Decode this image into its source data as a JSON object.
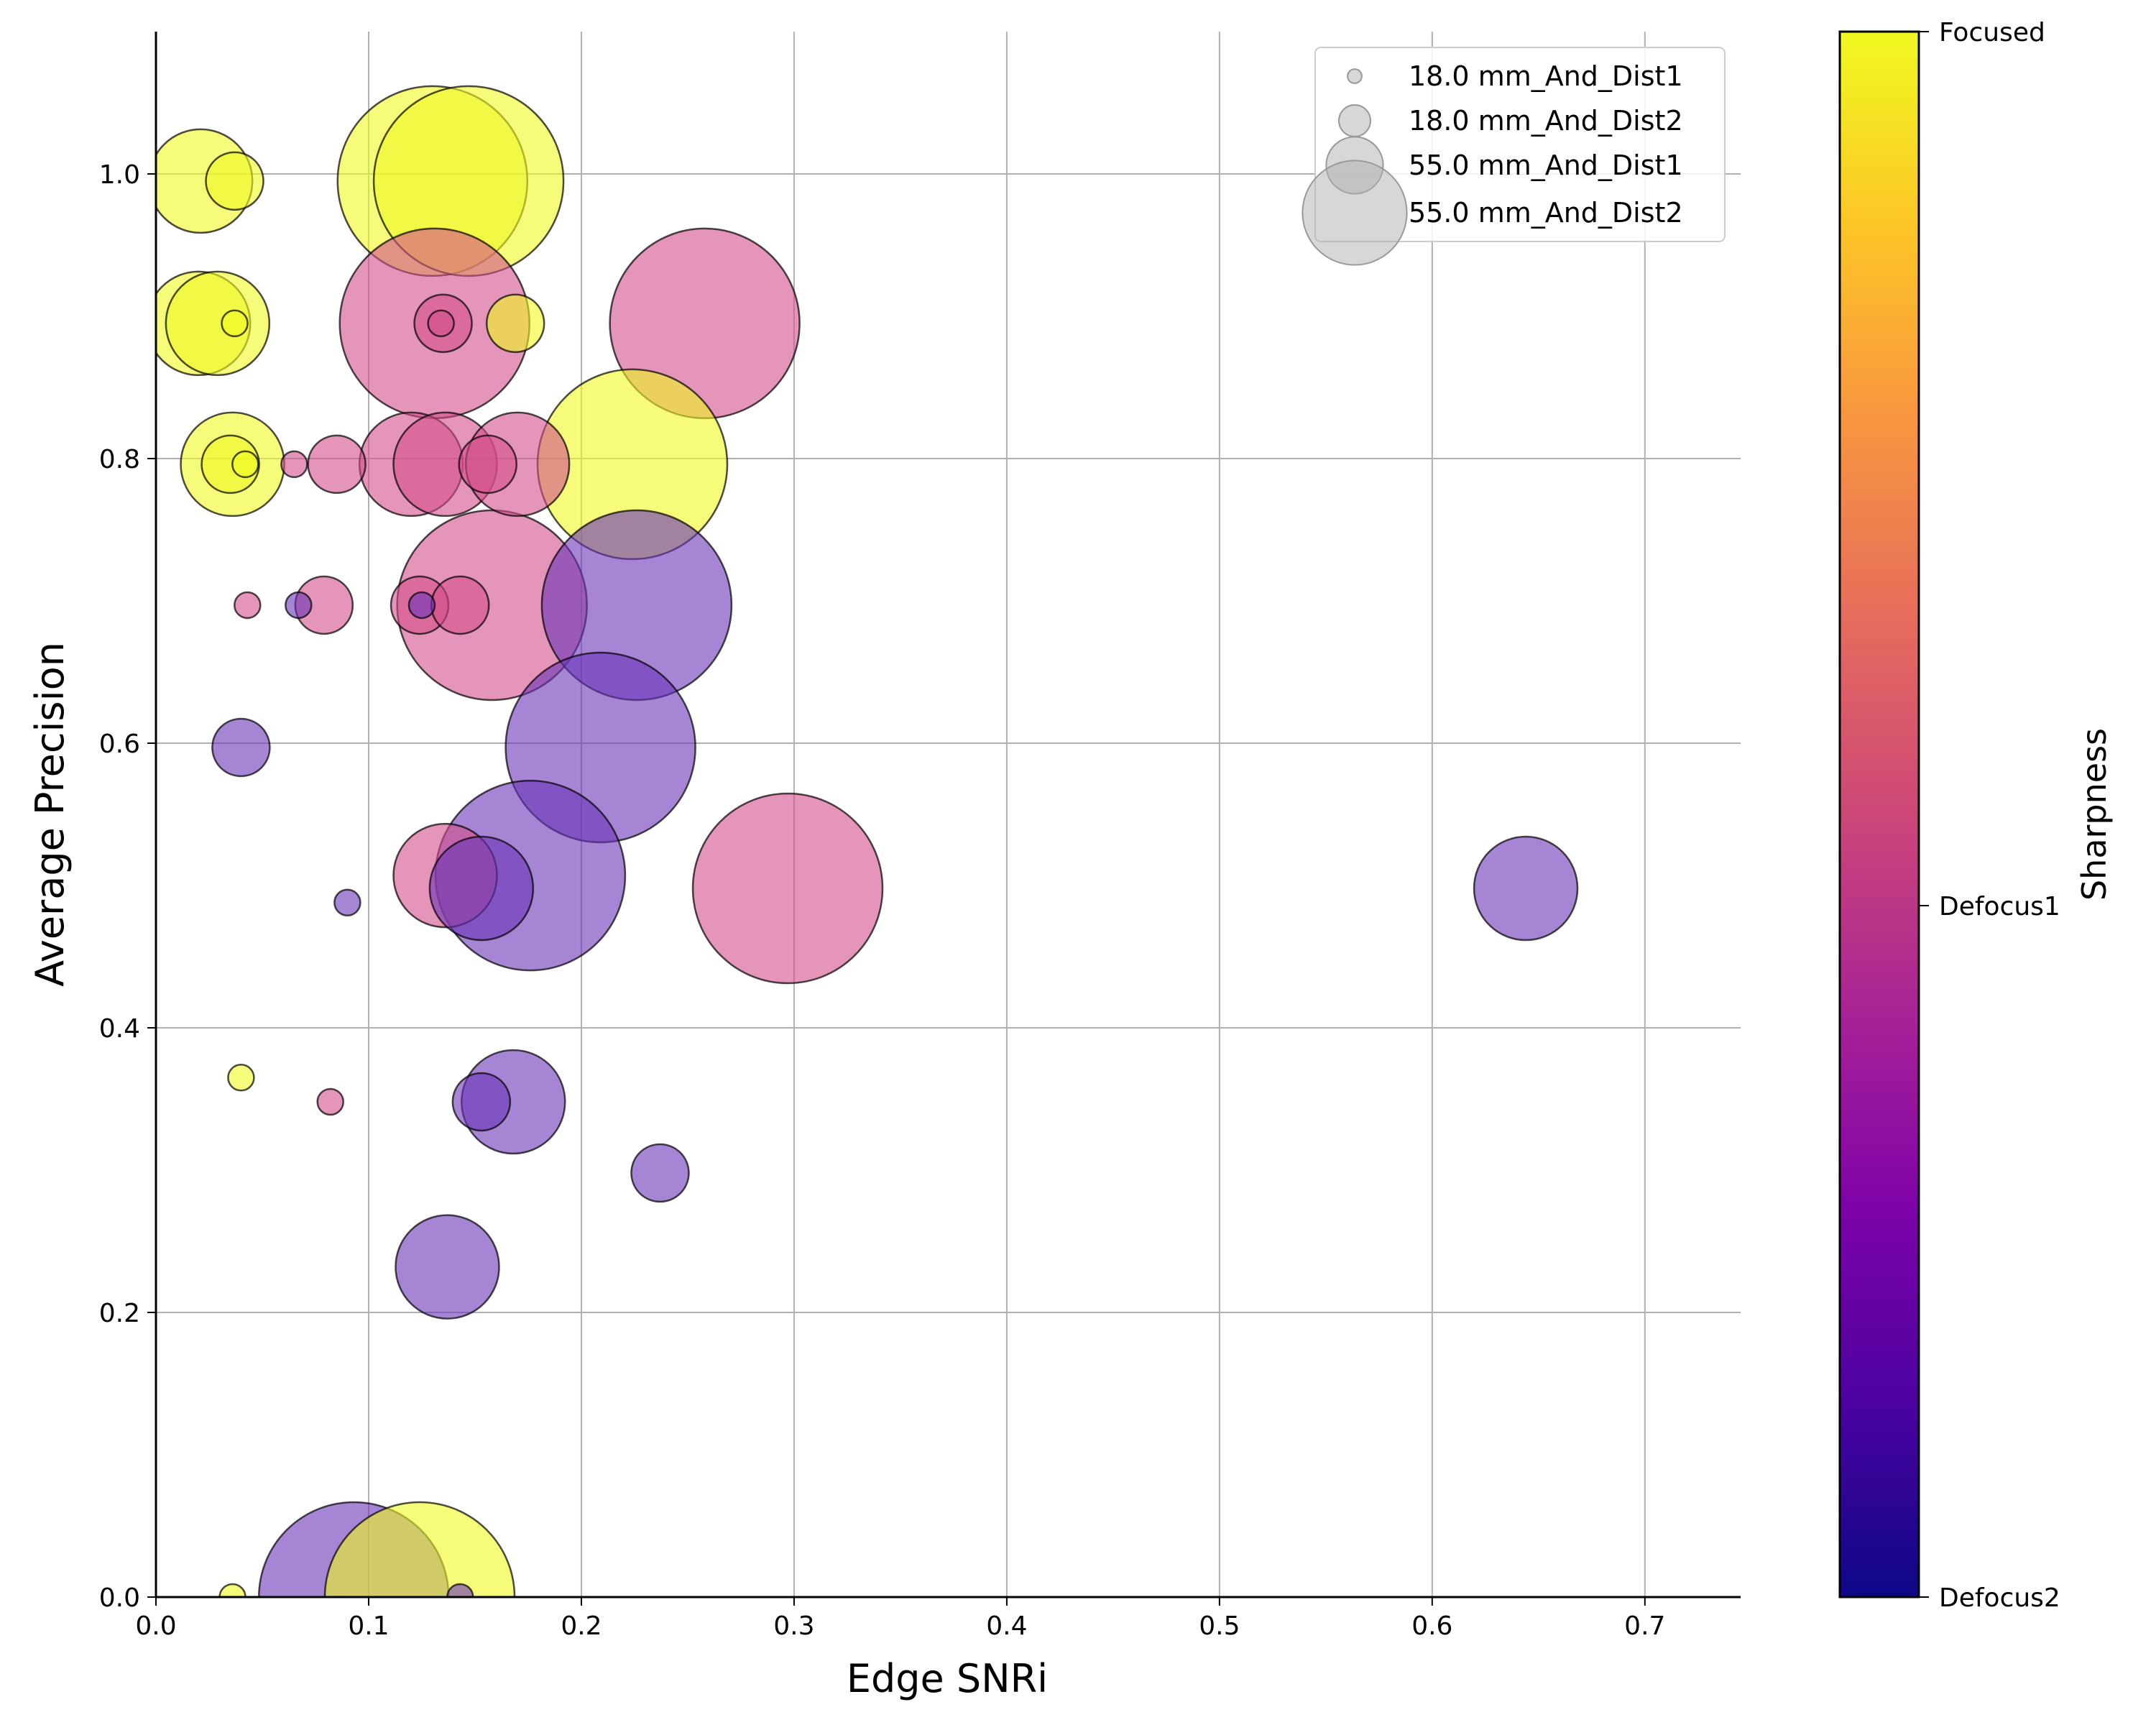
{
  "chart_data": {
    "type": "scatter",
    "xlabel": "Edge SNRi",
    "ylabel": "Average Precision",
    "xlim": [
      0.0,
      0.745
    ],
    "ylim": [
      0.0,
      1.1
    ],
    "x_ticks": [
      "0.0",
      "0.1",
      "0.2",
      "0.3",
      "0.4",
      "0.5",
      "0.6",
      "0.7"
    ],
    "y_ticks": [
      "0.0",
      "0.2",
      "0.4",
      "0.6",
      "0.8",
      "1.0"
    ],
    "grid": true,
    "colorbar": {
      "label": "Sharpness",
      "ticks": [
        "Focused",
        "Defocus1",
        "Defocus2"
      ],
      "colormap": "plasma"
    },
    "legend": {
      "position": "top-right",
      "entries": [
        "18.0 mm_And_Dist1",
        "18.0 mm_And_Dist2",
        "55.0 mm_And_Dist1",
        "55.0 mm_And_Dist2"
      ]
    },
    "sizes": {
      "18.0 mm_And_Dist1": 18,
      "18.0 mm_And_Dist2": 40,
      "55.0 mm_And_Dist1": 72,
      "55.0 mm_And_Dist2": 132
    },
    "sharpness_color": {
      "Focused": "#f0f921",
      "Defocus1": "#d44f8a",
      "Defocus2": "#6a33b8"
    },
    "points": [
      {
        "x": 0.021,
        "y": 0.995,
        "group": "55.0 mm_And_Dist1",
        "sharpness": "Focused"
      },
      {
        "x": 0.037,
        "y": 0.995,
        "group": "18.0 mm_And_Dist2",
        "sharpness": "Focused"
      },
      {
        "x": 0.13,
        "y": 0.995,
        "group": "55.0 mm_And_Dist2",
        "sharpness": "Focused"
      },
      {
        "x": 0.147,
        "y": 0.995,
        "group": "55.0 mm_And_Dist2",
        "sharpness": "Focused"
      },
      {
        "x": 0.02,
        "y": 0.895,
        "group": "55.0 mm_And_Dist1",
        "sharpness": "Focused"
      },
      {
        "x": 0.029,
        "y": 0.895,
        "group": "55.0 mm_And_Dist1",
        "sharpness": "Focused"
      },
      {
        "x": 0.037,
        "y": 0.895,
        "group": "18.0 mm_And_Dist1",
        "sharpness": "Focused"
      },
      {
        "x": 0.131,
        "y": 0.895,
        "group": "55.0 mm_And_Dist2",
        "sharpness": "Defocus1"
      },
      {
        "x": 0.135,
        "y": 0.895,
        "group": "18.0 mm_And_Dist2",
        "sharpness": "Defocus1"
      },
      {
        "x": 0.134,
        "y": 0.895,
        "group": "18.0 mm_And_Dist1",
        "sharpness": "Defocus1"
      },
      {
        "x": 0.169,
        "y": 0.895,
        "group": "18.0 mm_And_Dist2",
        "sharpness": "Focused"
      },
      {
        "x": 0.258,
        "y": 0.895,
        "group": "55.0 mm_And_Dist2",
        "sharpness": "Defocus1"
      },
      {
        "x": 0.036,
        "y": 0.796,
        "group": "55.0 mm_And_Dist1",
        "sharpness": "Focused"
      },
      {
        "x": 0.035,
        "y": 0.796,
        "group": "18.0 mm_And_Dist2",
        "sharpness": "Focused"
      },
      {
        "x": 0.042,
        "y": 0.796,
        "group": "18.0 mm_And_Dist1",
        "sharpness": "Focused"
      },
      {
        "x": 0.065,
        "y": 0.796,
        "group": "18.0 mm_And_Dist1",
        "sharpness": "Defocus1"
      },
      {
        "x": 0.085,
        "y": 0.796,
        "group": "18.0 mm_And_Dist2",
        "sharpness": "Defocus1"
      },
      {
        "x": 0.12,
        "y": 0.796,
        "group": "55.0 mm_And_Dist1",
        "sharpness": "Defocus1"
      },
      {
        "x": 0.136,
        "y": 0.796,
        "group": "55.0 mm_And_Dist1",
        "sharpness": "Defocus1"
      },
      {
        "x": 0.156,
        "y": 0.796,
        "group": "18.0 mm_And_Dist2",
        "sharpness": "Defocus1"
      },
      {
        "x": 0.17,
        "y": 0.796,
        "group": "55.0 mm_And_Dist1",
        "sharpness": "Defocus1"
      },
      {
        "x": 0.224,
        "y": 0.796,
        "group": "55.0 mm_And_Dist2",
        "sharpness": "Focused"
      },
      {
        "x": 0.043,
        "y": 0.697,
        "group": "18.0 mm_And_Dist1",
        "sharpness": "Defocus1"
      },
      {
        "x": 0.067,
        "y": 0.697,
        "group": "18.0 mm_And_Dist1",
        "sharpness": "Defocus2"
      },
      {
        "x": 0.079,
        "y": 0.697,
        "group": "18.0 mm_And_Dist2",
        "sharpness": "Defocus1"
      },
      {
        "x": 0.124,
        "y": 0.697,
        "group": "18.0 mm_And_Dist2",
        "sharpness": "Defocus1"
      },
      {
        "x": 0.125,
        "y": 0.697,
        "group": "18.0 mm_And_Dist1",
        "sharpness": "Defocus2"
      },
      {
        "x": 0.143,
        "y": 0.697,
        "group": "18.0 mm_And_Dist2",
        "sharpness": "Defocus1"
      },
      {
        "x": 0.158,
        "y": 0.697,
        "group": "55.0 mm_And_Dist2",
        "sharpness": "Defocus1"
      },
      {
        "x": 0.226,
        "y": 0.697,
        "group": "55.0 mm_And_Dist2",
        "sharpness": "Defocus2"
      },
      {
        "x": 0.04,
        "y": 0.597,
        "group": "18.0 mm_And_Dist2",
        "sharpness": "Defocus2"
      },
      {
        "x": 0.209,
        "y": 0.597,
        "group": "55.0 mm_And_Dist2",
        "sharpness": "Defocus2"
      },
      {
        "x": 0.136,
        "y": 0.507,
        "group": "55.0 mm_And_Dist1",
        "sharpness": "Defocus1"
      },
      {
        "x": 0.153,
        "y": 0.498,
        "group": "55.0 mm_And_Dist1",
        "sharpness": "Defocus2"
      },
      {
        "x": 0.176,
        "y": 0.507,
        "group": "55.0 mm_And_Dist2",
        "sharpness": "Defocus2"
      },
      {
        "x": 0.09,
        "y": 0.488,
        "group": "18.0 mm_And_Dist1",
        "sharpness": "Defocus2"
      },
      {
        "x": 0.297,
        "y": 0.498,
        "group": "55.0 mm_And_Dist2",
        "sharpness": "Defocus1"
      },
      {
        "x": 0.644,
        "y": 0.498,
        "group": "55.0 mm_And_Dist1",
        "sharpness": "Defocus2"
      },
      {
        "x": 0.04,
        "y": 0.365,
        "group": "18.0 mm_And_Dist1",
        "sharpness": "Focused"
      },
      {
        "x": 0.082,
        "y": 0.348,
        "group": "18.0 mm_And_Dist1",
        "sharpness": "Defocus1"
      },
      {
        "x": 0.153,
        "y": 0.348,
        "group": "18.0 mm_And_Dist2",
        "sharpness": "Defocus2"
      },
      {
        "x": 0.168,
        "y": 0.348,
        "group": "55.0 mm_And_Dist1",
        "sharpness": "Defocus2"
      },
      {
        "x": 0.237,
        "y": 0.298,
        "group": "18.0 mm_And_Dist2",
        "sharpness": "Defocus2"
      },
      {
        "x": 0.137,
        "y": 0.232,
        "group": "55.0 mm_And_Dist1",
        "sharpness": "Defocus2"
      },
      {
        "x": 0.036,
        "y": 0.0,
        "group": "18.0 mm_And_Dist1",
        "sharpness": "Focused"
      },
      {
        "x": 0.093,
        "y": 0.0,
        "group": "55.0 mm_And_Dist2",
        "sharpness": "Defocus2"
      },
      {
        "x": 0.124,
        "y": 0.0,
        "group": "55.0 mm_And_Dist2",
        "sharpness": "Focused"
      },
      {
        "x": 0.143,
        "y": 0.0,
        "group": "18.0 mm_And_Dist1",
        "sharpness": "Defocus2"
      }
    ]
  }
}
